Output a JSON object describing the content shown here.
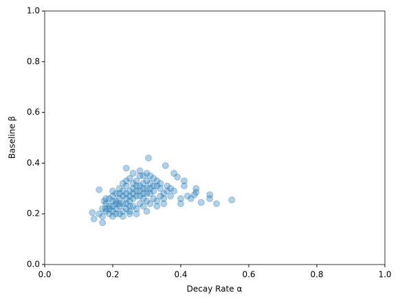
{
  "chart_data": {
    "type": "scatter",
    "x_label": "Decay Rate α",
    "y_label": "Baseline β",
    "color": "#1f77b4",
    "alpha": 0.35,
    "xlim": [
      0,
      1
    ],
    "ylim": [
      0,
      1
    ],
    "xticks": [
      {
        "value": 0,
        "label": "0.0"
      },
      0.2,
      0.4,
      0.6,
      0.8,
      {
        "value": 1,
        "label": "1.0"
      }
    ],
    "yticks": [
      {
        "value": 0,
        "label": "0.0"
      },
      0.2,
      0.4,
      0.6,
      0.8,
      {
        "value": 1,
        "label": "1.0"
      }
    ],
    "x": [
      0.55,
      0.505,
      0.485,
      0.485,
      0.46,
      0.445,
      0.445,
      0.44,
      0.43,
      0.42,
      0.41,
      0.4,
      0.39,
      0.38,
      0.355,
      0.305,
      0.24,
      0.14,
      0.145,
      0.17,
      0.16,
      0.4,
      0.41,
      0.37,
      0.38,
      0.18,
      0.19,
      0.2,
      0.21,
      0.22,
      0.23,
      0.24,
      0.25,
      0.26,
      0.27,
      0.28,
      0.29,
      0.3,
      0.31,
      0.32,
      0.33,
      0.34,
      0.35,
      0.22,
      0.23,
      0.25,
      0.26,
      0.28,
      0.29,
      0.3,
      0.32,
      0.27,
      0.24,
      0.21,
      0.2,
      0.19,
      0.18,
      0.17,
      0.16,
      0.17,
      0.19,
      0.2,
      0.22,
      0.23,
      0.24,
      0.25,
      0.26,
      0.27,
      0.28,
      0.29,
      0.3,
      0.31,
      0.32,
      0.33,
      0.34,
      0.35,
      0.36,
      0.36,
      0.37,
      0.33,
      0.31,
      0.29,
      0.27,
      0.26,
      0.25,
      0.24,
      0.23,
      0.22,
      0.21,
      0.2,
      0.19,
      0.18,
      0.21,
      0.23,
      0.25,
      0.27,
      0.3,
      0.33,
      0.35,
      0.28,
      0.29,
      0.3,
      0.31,
      0.32,
      0.26,
      0.25,
      0.24,
      0.22,
      0.21,
      0.2,
      0.28,
      0.27,
      0.3,
      0.34,
      0.29,
      0.26,
      0.23,
      0.2,
      0.18,
      0.175,
      0.22,
      0.24,
      0.31,
      0.28,
      0.25
    ],
    "y": [
      0.255,
      0.24,
      0.26,
      0.275,
      0.245,
      0.3,
      0.285,
      0.275,
      0.26,
      0.27,
      0.33,
      0.24,
      0.345,
      0.36,
      0.39,
      0.42,
      0.38,
      0.205,
      0.18,
      0.165,
      0.295,
      0.26,
      0.31,
      0.27,
      0.29,
      0.21,
      0.23,
      0.25,
      0.22,
      0.26,
      0.24,
      0.28,
      0.27,
      0.3,
      0.29,
      0.31,
      0.28,
      0.3,
      0.32,
      0.29,
      0.31,
      0.3,
      0.28,
      0.3,
      0.32,
      0.34,
      0.36,
      0.37,
      0.35,
      0.36,
      0.34,
      0.33,
      0.31,
      0.28,
      0.27,
      0.26,
      0.24,
      0.22,
      0.2,
      0.19,
      0.2,
      0.19,
      0.2,
      0.21,
      0.22,
      0.21,
      0.23,
      0.22,
      0.24,
      0.23,
      0.25,
      0.24,
      0.26,
      0.25,
      0.27,
      0.26,
      0.29,
      0.31,
      0.3,
      0.33,
      0.28,
      0.3,
      0.27,
      0.26,
      0.25,
      0.26,
      0.27,
      0.24,
      0.25,
      0.23,
      0.22,
      0.22,
      0.2,
      0.19,
      0.2,
      0.2,
      0.21,
      0.23,
      0.24,
      0.27,
      0.26,
      0.28,
      0.3,
      0.31,
      0.28,
      0.29,
      0.24,
      0.23,
      0.24,
      0.21,
      0.29,
      0.31,
      0.33,
      0.32,
      0.32,
      0.32,
      0.29,
      0.29,
      0.26,
      0.25,
      0.28,
      0.33,
      0.35,
      0.35,
      0.23
    ]
  }
}
